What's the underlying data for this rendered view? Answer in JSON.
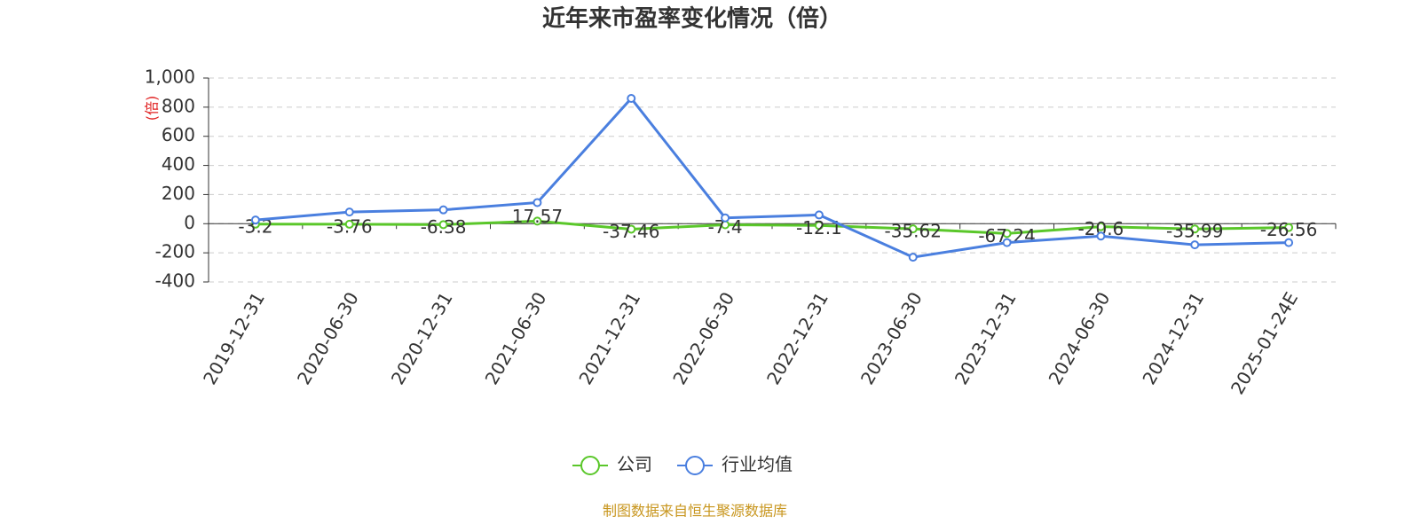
{
  "chart_data": {
    "type": "line",
    "title": "近年来市盈率变化情况（倍）",
    "y_label": "(倍)",
    "categories": [
      "2019-12-31",
      "2020-06-30",
      "2020-12-31",
      "2021-06-30",
      "2021-12-31",
      "2022-06-30",
      "2022-12-31",
      "2023-06-30",
      "2023-12-31",
      "2024-06-30",
      "2024-12-31",
      "2025-01-24E"
    ],
    "series": [
      {
        "name": "公司",
        "color": "#5ac72a",
        "values": [
          -3.2,
          -3.76,
          -6.38,
          17.57,
          -37.46,
          -7.4,
          -12.1,
          -35.62,
          -67.24,
          -20.6,
          -35.99,
          -26.56
        ],
        "data_labels": true
      },
      {
        "name": "行业均值",
        "color": "#4a7fdf",
        "values": [
          25,
          80,
          95,
          145,
          860,
          40,
          60,
          -230,
          -130,
          -85,
          -145,
          -130
        ],
        "data_labels": false
      }
    ],
    "ylim": [
      -400,
      1000
    ],
    "yticks": [
      -400,
      -200,
      0,
      200,
      400,
      600,
      800,
      {
        "value": 1000,
        "label": "1,000"
      }
    ],
    "grid": true,
    "source": "制图数据来自恒生聚源数据库"
  }
}
